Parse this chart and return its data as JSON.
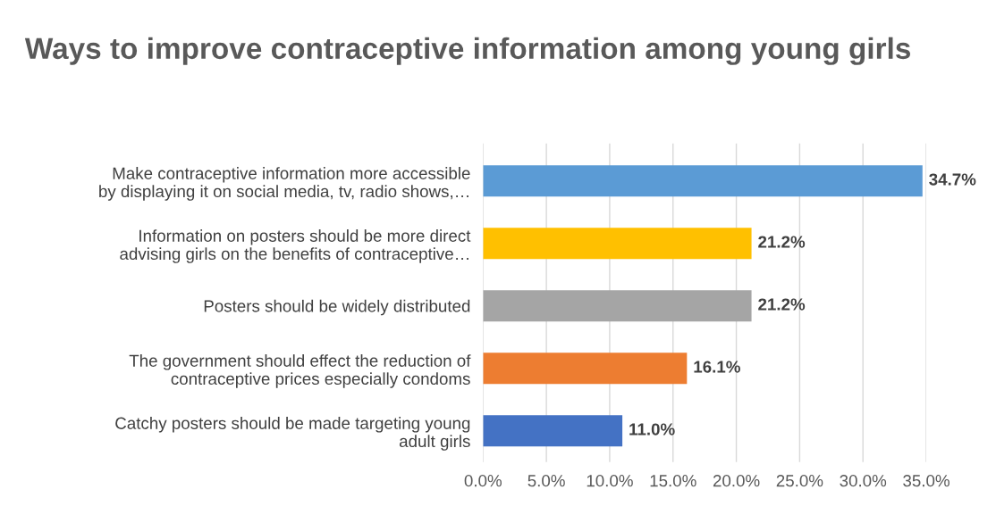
{
  "chart_data": {
    "type": "bar",
    "orientation": "horizontal",
    "title": "Ways to improve contraceptive information among young girls",
    "categories": [
      "Make contraceptive information more accessible\nby displaying it on social media, tv, radio shows,…",
      "Information on posters should be more direct\nadvising girls on the benefits of contraceptive…",
      "Posters should be widely distributed",
      "The government should effect the reduction of\ncontraceptive prices especially condoms",
      "Catchy posters should be made targeting young\nadult girls"
    ],
    "values": [
      34.7,
      21.2,
      21.2,
      16.1,
      11.0
    ],
    "colors": [
      "#5b9bd5",
      "#ffc000",
      "#a5a5a5",
      "#ed7d31",
      "#4472c4"
    ],
    "value_labels": [
      "34.7%",
      "21.2%",
      "21.2%",
      "16.1%",
      "11.0%"
    ],
    "xlim": [
      0,
      35
    ],
    "xticks": [
      {
        "value": 0,
        "label": "0.0%"
      },
      {
        "value": 5,
        "label": "5.0%"
      },
      {
        "value": 10,
        "label": "10.0%"
      },
      {
        "value": 15,
        "label": "15.0%"
      },
      {
        "value": 20,
        "label": "20.0%"
      },
      {
        "value": 25,
        "label": "25.0%"
      },
      {
        "value": 30,
        "label": "30.0%"
      },
      {
        "value": 35,
        "label": "35.0%"
      }
    ],
    "grid": "x"
  }
}
